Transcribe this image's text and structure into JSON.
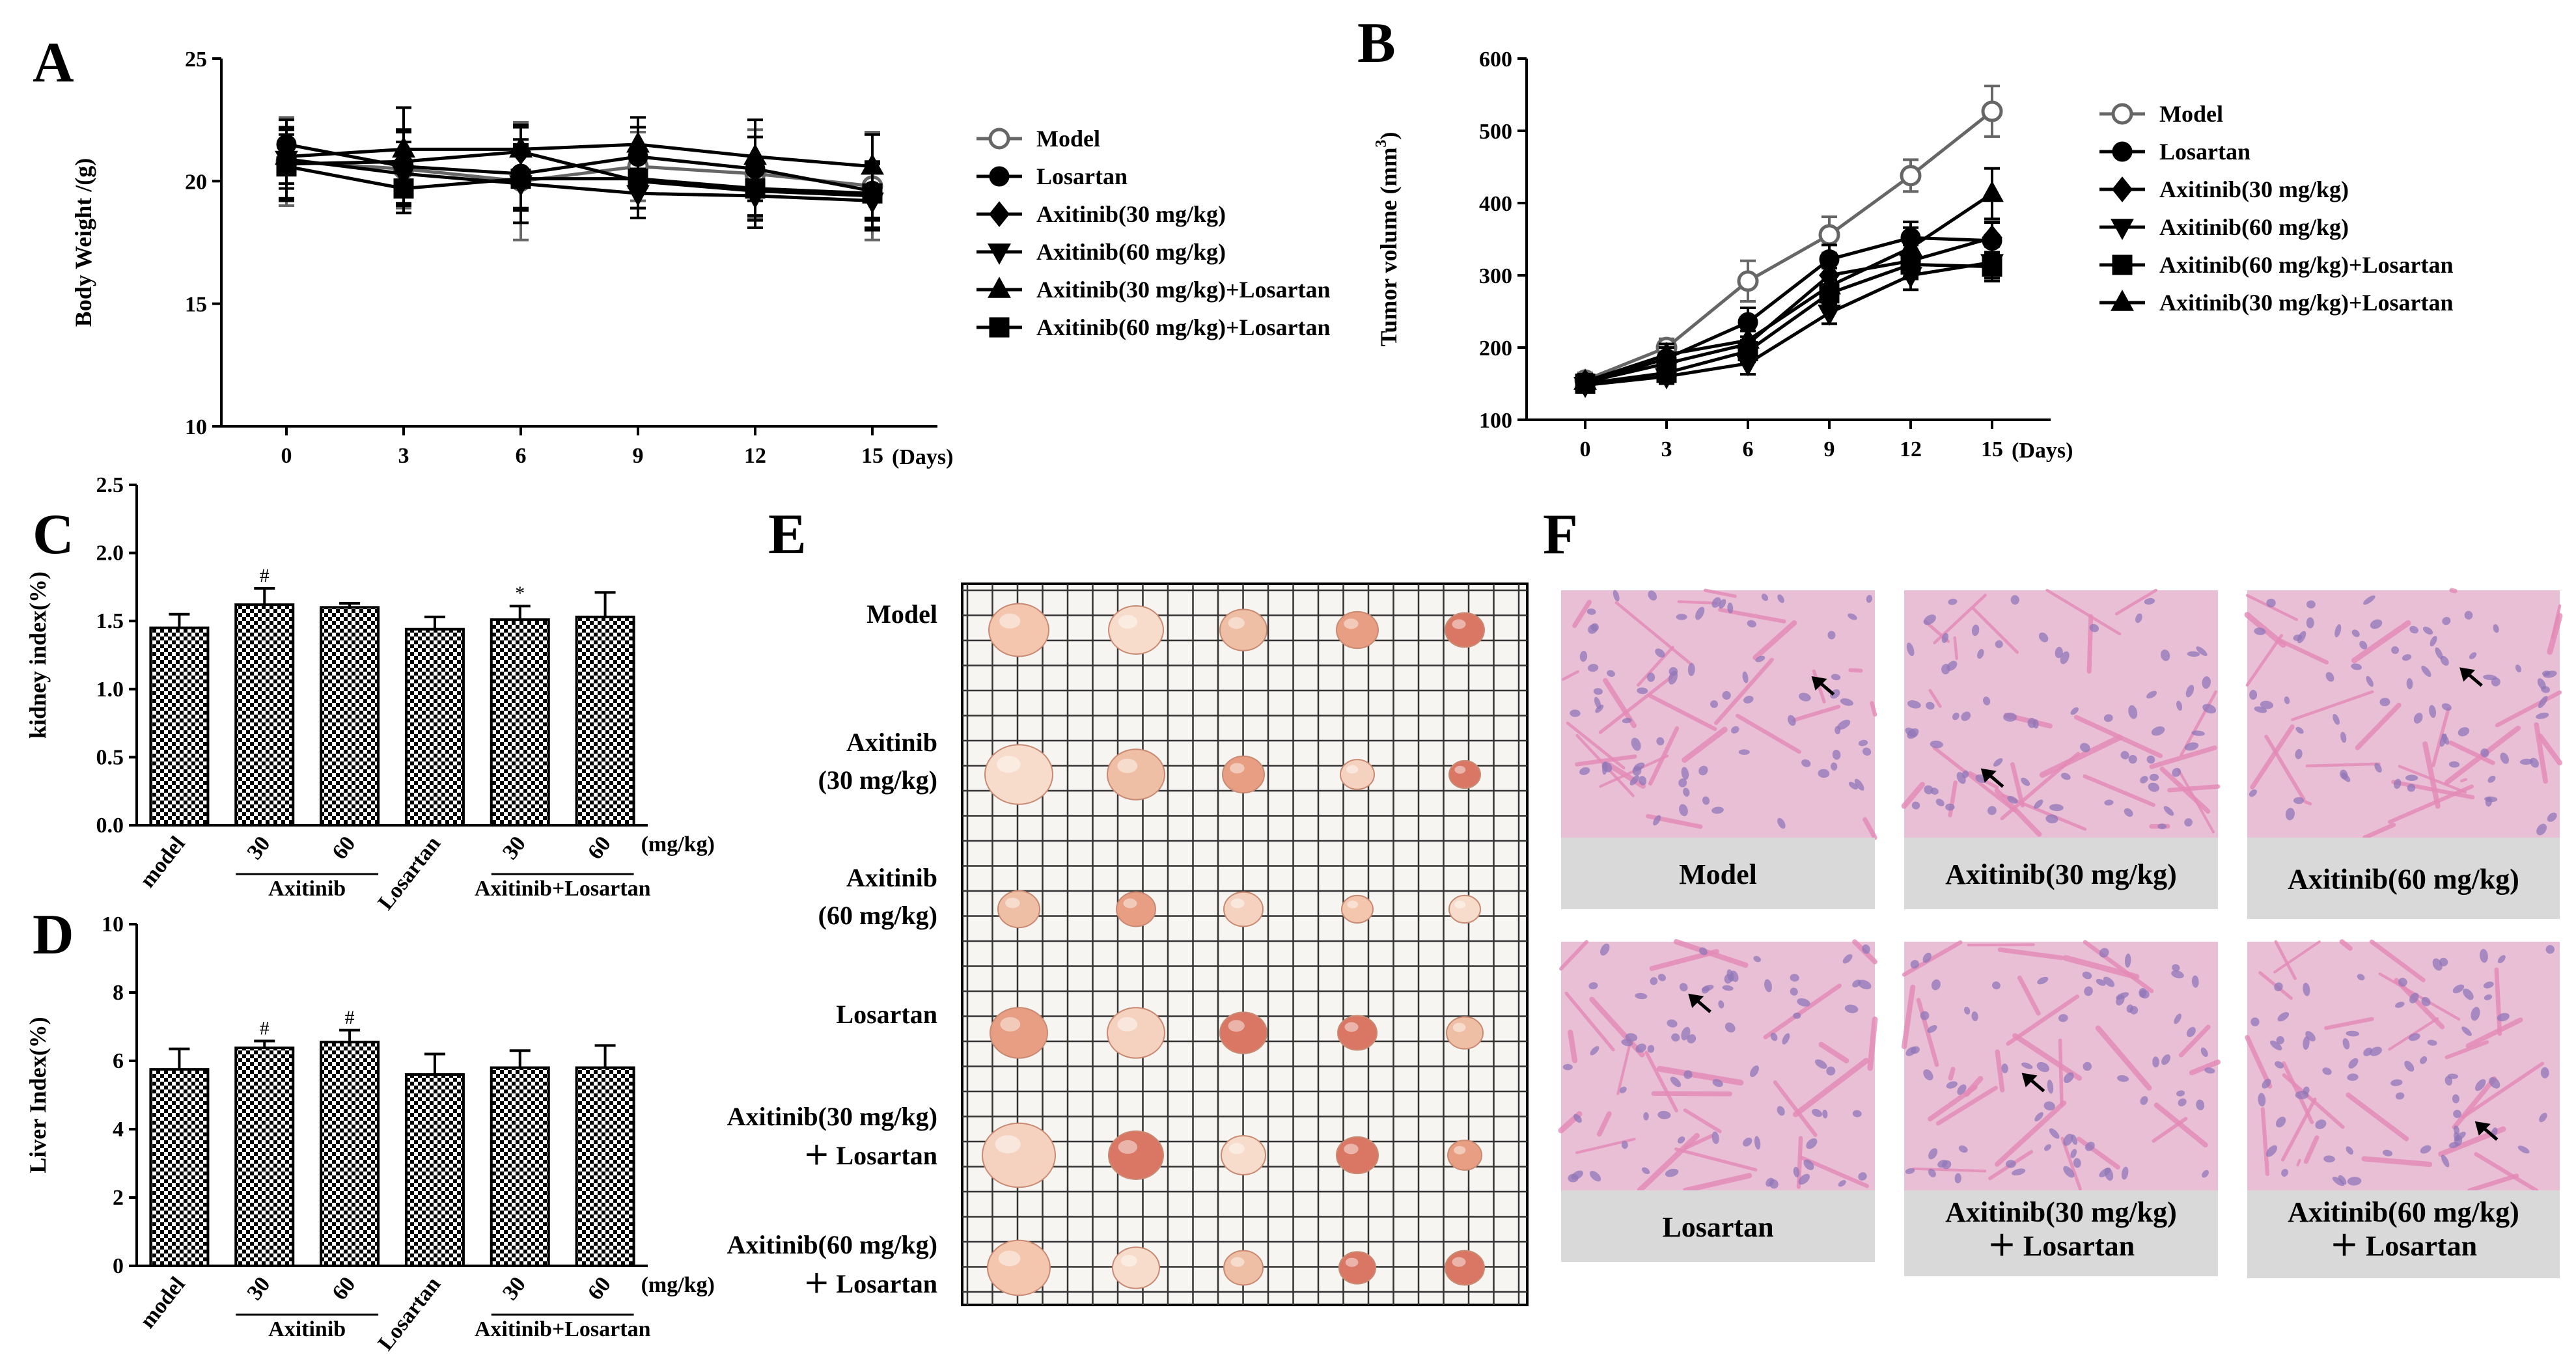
{
  "chart_data": [
    {
      "panel": "A",
      "type": "line",
      "ylabel": "Body Weight /(g)",
      "x_unit_label": "(Days)",
      "x": [
        0,
        3,
        6,
        9,
        12,
        15
      ],
      "ylim": [
        10,
        25
      ],
      "yticks": [
        10,
        15,
        20,
        25
      ],
      "series": [
        {
          "name": "Model",
          "marker": "open-circle",
          "values": [
            20.8,
            20.5,
            20.0,
            20.6,
            20.3,
            19.8
          ],
          "errors": [
            1.8,
            1.6,
            2.4,
            1.4,
            1.8,
            2.2
          ]
        },
        {
          "name": "Losartan",
          "marker": "circle",
          "values": [
            21.5,
            20.6,
            20.3,
            21.0,
            20.5,
            19.6
          ],
          "errors": [
            1.0,
            1.5,
            1.4,
            1.2,
            1.3,
            1.2
          ]
        },
        {
          "name": "Axitinib(30 mg/kg)",
          "marker": "diamond",
          "values": [
            20.7,
            20.8,
            21.2,
            20.0,
            19.6,
            19.4
          ],
          "errors": [
            1.5,
            1.2,
            1.0,
            1.1,
            1.2,
            1.3
          ]
        },
        {
          "name": "Axitinib(60 mg/kg)",
          "marker": "triangle-down",
          "values": [
            20.9,
            20.3,
            19.9,
            19.5,
            19.4,
            19.2
          ],
          "errors": [
            1.2,
            1.3,
            1.6,
            1.0,
            1.3,
            1.2
          ]
        },
        {
          "name": "Axitinib(30 mg/kg)+Losartan",
          "marker": "triangle-up",
          "values": [
            21.0,
            21.3,
            21.3,
            21.5,
            21.0,
            20.6
          ],
          "errors": [
            1.1,
            1.7,
            1.0,
            1.1,
            1.5,
            1.3
          ]
        },
        {
          "name": "Axitinib(60 mg/kg)+Losartan",
          "marker": "square",
          "values": [
            20.6,
            19.7,
            20.1,
            20.1,
            19.7,
            19.5
          ],
          "errors": [
            1.3,
            1.0,
            1.3,
            1.2,
            1.1,
            1.0
          ]
        }
      ]
    },
    {
      "panel": "B",
      "type": "line",
      "ylabel": "Tumor volume (mm",
      "ylabel_sup": "3",
      "ylabel_close": ")",
      "x_unit_label": "(Days)",
      "x": [
        0,
        3,
        6,
        9,
        12,
        15
      ],
      "ylim": [
        100,
        600
      ],
      "yticks": [
        100,
        200,
        300,
        400,
        500,
        600
      ],
      "series": [
        {
          "name": "Model",
          "marker": "open-circle",
          "values": [
            155,
            200,
            292,
            356,
            438,
            527
          ],
          "errors": [
            10,
            12,
            28,
            25,
            22,
            35
          ]
        },
        {
          "name": "Losartan",
          "marker": "circle",
          "values": [
            150,
            185,
            235,
            322,
            352,
            348
          ],
          "errors": [
            10,
            15,
            20,
            20,
            22,
            25
          ]
        },
        {
          "name": "Axitinib(30 mg/kg)",
          "marker": "diamond",
          "values": [
            152,
            178,
            205,
            300,
            320,
            352
          ],
          "errors": [
            10,
            12,
            18,
            20,
            22,
            22
          ]
        },
        {
          "name": "Axitinib(60 mg/kg)",
          "marker": "triangle-down",
          "values": [
            148,
            160,
            178,
            248,
            300,
            318
          ],
          "errors": [
            8,
            10,
            15,
            15,
            20,
            22
          ]
        },
        {
          "name": "Axitinib(60 mg/kg)+Losartan",
          "marker": "square",
          "values": [
            150,
            165,
            195,
            275,
            315,
            312
          ],
          "errors": [
            10,
            12,
            15,
            18,
            20,
            20
          ]
        },
        {
          "name": "Axitinib(30 mg/kg)+Losartan",
          "marker": "triangle-up",
          "values": [
            153,
            190,
            210,
            285,
            338,
            413
          ],
          "errors": [
            10,
            15,
            22,
            25,
            28,
            35
          ]
        }
      ]
    },
    {
      "panel": "C",
      "type": "bar",
      "ylabel": "kidney index(%)",
      "ylim": [
        0,
        2.5
      ],
      "yticks": [
        "0.0",
        "0.5",
        "1.0",
        "1.5",
        "2.0",
        "2.5"
      ],
      "categories": [
        "model",
        "30",
        "60",
        "Losartan",
        "30",
        "60"
      ],
      "values": [
        1.45,
        1.62,
        1.6,
        1.44,
        1.51,
        1.53
      ],
      "errors": [
        0.1,
        0.12,
        0.03,
        0.09,
        0.1,
        0.18
      ],
      "significance": [
        "",
        "#",
        "",
        "",
        "*",
        ""
      ],
      "group_labels": [
        "Axitinib",
        "Axitinib+Losartan"
      ],
      "unit_label": "(mg/kg)"
    },
    {
      "panel": "D",
      "type": "bar",
      "ylabel": "Liver Index(%)",
      "ylim": [
        0,
        10
      ],
      "yticks": [
        "0",
        "2",
        "4",
        "6",
        "8",
        "10"
      ],
      "categories": [
        "model",
        "30",
        "60",
        "Losartan",
        "30",
        "60"
      ],
      "values": [
        5.75,
        6.38,
        6.55,
        5.6,
        5.8,
        5.8
      ],
      "errors": [
        0.6,
        0.2,
        0.35,
        0.6,
        0.5,
        0.65
      ],
      "significance": [
        "",
        "#",
        "#",
        "",
        "",
        ""
      ],
      "group_labels": [
        "Axitinib",
        "Axitinib+Losartan"
      ],
      "unit_label": "(mg/kg)"
    }
  ],
  "panels": {
    "E": {
      "letter": "E",
      "row_labels": [
        [
          "Model"
        ],
        [
          "Axitinib",
          "(30 mg/kg)"
        ],
        [
          "Axitinib",
          "(60 mg/kg)"
        ],
        [
          "Losartan"
        ],
        [
          "Axitinib(30 mg/kg)",
          "＋ Losartan"
        ],
        [
          "Axitinib(60 mg/kg)",
          "＋ Losartan"
        ]
      ]
    },
    "F": {
      "letter": "F",
      "labels": [
        [
          "Model"
        ],
        [
          "Axitinib(30 mg/kg)"
        ],
        [
          "Axitinib(60 mg/kg)"
        ],
        [
          "Losartan"
        ],
        [
          "Axitinib(30 mg/kg)",
          "＋ Losartan"
        ],
        [
          "Axitinib(60 mg/kg)",
          "＋ Losartan"
        ]
      ]
    }
  },
  "colors": {
    "ink": "#000000",
    "tissue_base": "#e9bfd6",
    "tissue_fiber": "#e48ab6",
    "tissue_nucleus": "#8f77b8",
    "label_band": "#d9d9d9",
    "tumor": "#f1c2a8",
    "tumor_dark": "#d97764",
    "grid_line": "#333333"
  }
}
